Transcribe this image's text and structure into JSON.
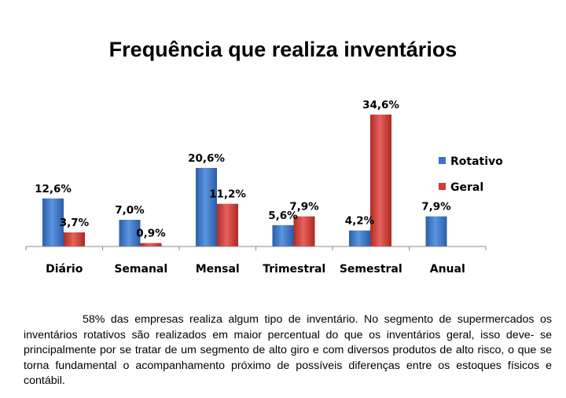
{
  "chart_data": {
    "type": "bar",
    "title": "Frequência que realiza inventários",
    "categories": [
      "Diário",
      "Semanal",
      "Mensal",
      "Trimestral",
      "Semestral",
      "Anual"
    ],
    "series": [
      {
        "name": "Rotativo",
        "color": "#3a73c8",
        "values": [
          12.6,
          7.0,
          20.6,
          5.6,
          4.2,
          7.9
        ],
        "labels": [
          "12,6%",
          "7,0%",
          "20,6%",
          "5,6%",
          "4,2%",
          "7,9%"
        ]
      },
      {
        "name": "Geral",
        "color": "#d23a36",
        "values": [
          3.7,
          0.9,
          11.2,
          7.9,
          34.6,
          null
        ],
        "labels": [
          "3,7%",
          "0,9%",
          "11,2%",
          "7,9%",
          "34,6%",
          ""
        ]
      }
    ],
    "ylim": [
      0,
      35
    ],
    "grid": false,
    "legend": "right"
  },
  "caption": "58% das empresas realiza algum tipo de inventário. No segmento de supermercados os inventários rotativos são realizados em maior percentual do que os inventários geral, isso deve- se principalmente por se tratar de um segmento de alto giro e com diversos produtos de alto risco, o que se torna fundamental o acompanhamento próximo de possíveis diferenças entre os estoques físicos e contábil."
}
